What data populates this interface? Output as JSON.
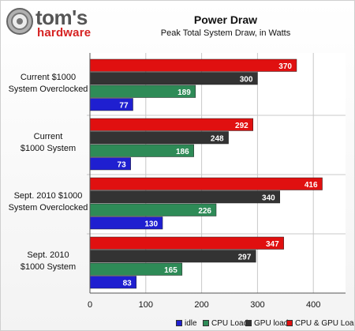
{
  "brand": {
    "name_top": "tom's",
    "name_bottom": "hardware"
  },
  "chart_data": {
    "type": "bar",
    "orientation": "horizontal",
    "title": "Power Draw",
    "subtitle": "Peak Total System Draw, in Watts",
    "categories": [
      "Current $1000 System Overclocked",
      "Current $1000 System",
      "Sept. 2010 $1000 System Overclocked",
      "Sept. 2010 $1000 System"
    ],
    "category_lines": [
      [
        "Current $1000",
        "System Overclocked"
      ],
      [
        "Current",
        "$1000 System"
      ],
      [
        "Sept. 2010 $1000",
        "System Overclocked"
      ],
      [
        "Sept. 2010",
        "$1000 System"
      ]
    ],
    "series": [
      {
        "name": "idle",
        "color": "#1f1fd0",
        "values": [
          77,
          73,
          130,
          83
        ]
      },
      {
        "name": "CPU Load",
        "color": "#2e8b57",
        "values": [
          189,
          186,
          226,
          165
        ]
      },
      {
        "name": "GPU load",
        "color": "#333333",
        "values": [
          300,
          248,
          340,
          297
        ]
      },
      {
        "name": "CPU & GPU Load",
        "color": "#e01010",
        "values": [
          370,
          292,
          416,
          347
        ]
      }
    ],
    "xlim": [
      0,
      450
    ],
    "xticks": [
      0,
      100,
      200,
      300,
      400
    ],
    "grid": true,
    "legend_position": "bottom"
  }
}
